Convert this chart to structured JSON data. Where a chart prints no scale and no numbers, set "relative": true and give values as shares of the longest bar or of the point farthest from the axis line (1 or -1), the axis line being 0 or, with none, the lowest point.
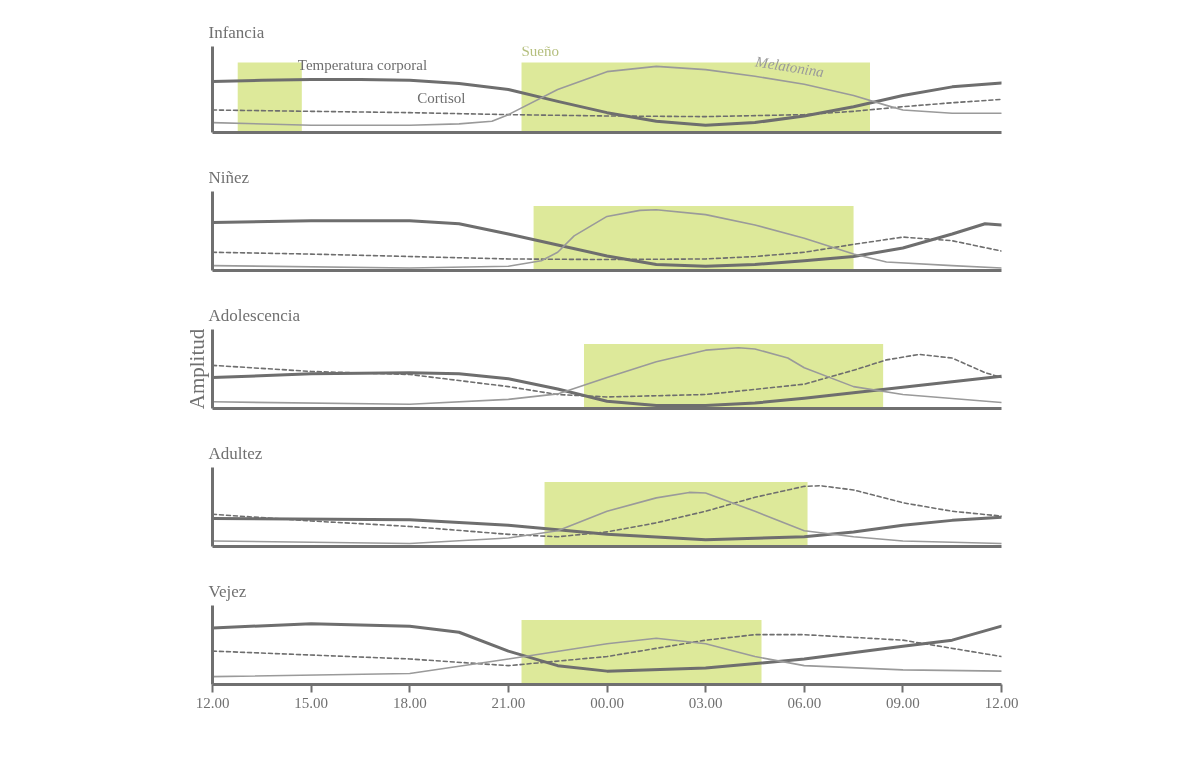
{
  "chart_data": [
    {
      "type": "line",
      "title": "Infancia",
      "relative": true,
      "xlim": [
        "2000-01-01T12:00",
        "2000-01-02T12:00"
      ],
      "tick_labels": false,
      "grid": false,
      "bands": [
        {
          "axis": "x",
          "from": "2000-01-01T12:46",
          "to": "2000-01-01T14:43",
          "color": "#dde99a"
        },
        {
          "axis": "x",
          "from": "2000-01-01T21:24",
          "to": "2000-01-02T08:00",
          "label": "Sueño",
          "color": "#dde99a"
        }
      ],
      "series": [
        {
          "name": "Temperatura corporal",
          "color": "#6e6e6e",
          "line_style": "solid",
          "x": [
            "2000-01-01T12:00",
            "2000-01-01T13:30",
            "2000-01-01T15:00",
            "2000-01-01T16:30",
            "2000-01-01T18:00",
            "2000-01-01T19:30",
            "2000-01-01T21:00",
            "2000-01-01T22:30",
            "2000-01-02T00:00",
            "2000-01-02T01:30",
            "2000-01-02T03:00",
            "2000-01-02T04:30",
            "2000-01-02T06:00",
            "2000-01-02T07:30",
            "2000-01-02T09:00",
            "2000-01-02T10:30",
            "2000-01-02T12:00"
          ],
          "values": [
            0.77,
            0.79,
            0.8,
            0.8,
            0.79,
            0.74,
            0.65,
            0.47,
            0.3,
            0.17,
            0.11,
            0.15,
            0.25,
            0.39,
            0.56,
            0.69,
            0.75
          ]
        },
        {
          "name": "Cortisol",
          "color": "#6e6e6e",
          "line_style": "dashed",
          "x": [
            "2000-01-01T12:00",
            "2000-01-01T15:00",
            "2000-01-01T18:00",
            "2000-01-01T21:00",
            "2000-01-02T00:00",
            "2000-01-02T03:00",
            "2000-01-02T06:00",
            "2000-01-02T07:30",
            "2000-01-02T09:00",
            "2000-01-02T10:30",
            "2000-01-02T12:00"
          ],
          "values": [
            0.34,
            0.32,
            0.3,
            0.27,
            0.25,
            0.24,
            0.27,
            0.32,
            0.39,
            0.45,
            0.5
          ]
        },
        {
          "name": "Melatonina",
          "color": "#9a9a9a",
          "line_style": "solid",
          "x": [
            "2000-01-01T12:00",
            "2000-01-01T15:00",
            "2000-01-01T18:00",
            "2000-01-01T19:30",
            "2000-01-01T20:30",
            "2000-01-01T21:00",
            "2000-01-01T22:30",
            "2000-01-02T00:00",
            "2000-01-02T01:30",
            "2000-01-02T03:00",
            "2000-01-02T04:30",
            "2000-01-02T06:00",
            "2000-01-02T07:30",
            "2000-01-02T08:30",
            "2000-01-02T09:00",
            "2000-01-02T10:30",
            "2000-01-02T12:00"
          ],
          "values": [
            0.15,
            0.11,
            0.11,
            0.13,
            0.17,
            0.27,
            0.65,
            0.92,
            1,
            0.95,
            0.85,
            0.73,
            0.56,
            0.41,
            0.34,
            0.29,
            0.29
          ]
        }
      ]
    },
    {
      "type": "line",
      "title": "Niñez",
      "relative": true,
      "xlim": [
        "2000-01-01T12:00",
        "2000-01-02T12:00"
      ],
      "tick_labels": false,
      "grid": false,
      "bands": [
        {
          "axis": "x",
          "from": "2000-01-01T21:46",
          "to": "2000-01-02T07:30",
          "color": "#dde99a"
        }
      ],
      "series": [
        {
          "color": "#6e6e6e",
          "line_style": "solid",
          "x": [
            "2000-01-01T12:00",
            "2000-01-01T15:00",
            "2000-01-01T18:00",
            "2000-01-01T19:30",
            "2000-01-01T21:00",
            "2000-01-01T22:30",
            "2000-01-02T00:00",
            "2000-01-02T01:30",
            "2000-01-02T03:00",
            "2000-01-02T04:30",
            "2000-01-02T06:00",
            "2000-01-02T07:30",
            "2000-01-02T09:00",
            "2000-01-02T10:30",
            "2000-01-02T11:30",
            "2000-01-02T12:00"
          ],
          "values": [
            0.79,
            0.82,
            0.82,
            0.77,
            0.6,
            0.42,
            0.24,
            0.1,
            0.07,
            0.1,
            0.16,
            0.23,
            0.37,
            0.6,
            0.77,
            0.75
          ]
        },
        {
          "color": "#6e6e6e",
          "line_style": "dashed",
          "x": [
            "2000-01-01T12:00",
            "2000-01-01T15:00",
            "2000-01-01T18:00",
            "2000-01-01T21:00",
            "2000-01-02T00:00",
            "2000-01-02T03:00",
            "2000-01-02T04:30",
            "2000-01-02T06:00",
            "2000-01-02T07:30",
            "2000-01-02T09:00",
            "2000-01-02T10:30",
            "2000-01-02T12:00"
          ],
          "values": [
            0.3,
            0.27,
            0.23,
            0.19,
            0.18,
            0.19,
            0.23,
            0.3,
            0.43,
            0.55,
            0.49,
            0.32
          ]
        },
        {
          "color": "#9a9a9a",
          "line_style": "solid",
          "x": [
            "2000-01-01T12:00",
            "2000-01-01T18:00",
            "2000-01-01T21:00",
            "2000-01-01T22:00",
            "2000-01-01T22:30",
            "2000-01-01T23:00",
            "2000-01-02T00:00",
            "2000-01-02T01:00",
            "2000-01-02T01:30",
            "2000-01-02T03:00",
            "2000-01-02T04:30",
            "2000-01-02T06:00",
            "2000-01-02T07:30",
            "2000-01-02T08:30",
            "2000-01-02T10:30",
            "2000-01-02T12:00"
          ],
          "values": [
            0.08,
            0.04,
            0.07,
            0.16,
            0.3,
            0.57,
            0.89,
            0.99,
            1,
            0.92,
            0.75,
            0.53,
            0.27,
            0.14,
            0.08,
            0.04
          ]
        }
      ]
    },
    {
      "type": "line",
      "title": "Adolescencia",
      "ylabel": "Amplitud",
      "relative": true,
      "xlim": [
        "2000-01-01T12:00",
        "2000-01-02T12:00"
      ],
      "tick_labels": false,
      "grid": false,
      "bands": [
        {
          "axis": "x",
          "from": "2000-01-01T23:18",
          "to": "2000-01-02T08:24",
          "color": "#dde99a"
        }
      ],
      "series": [
        {
          "color": "#6e6e6e",
          "line_style": "solid",
          "x": [
            "2000-01-01T12:00",
            "2000-01-01T15:00",
            "2000-01-01T18:00",
            "2000-01-01T19:30",
            "2000-01-01T21:00",
            "2000-01-01T22:30",
            "2000-01-02T00:00",
            "2000-01-02T01:30",
            "2000-01-02T03:00",
            "2000-01-02T04:30",
            "2000-01-02T06:00",
            "2000-01-02T07:30",
            "2000-01-02T09:00",
            "2000-01-02T10:30",
            "2000-01-02T12:00"
          ],
          "values": [
            0.51,
            0.57,
            0.59,
            0.57,
            0.49,
            0.32,
            0.12,
            0.05,
            0.05,
            0.09,
            0.17,
            0.26,
            0.35,
            0.44,
            0.53
          ]
        },
        {
          "color": "#6e6e6e",
          "line_style": "dashed",
          "x": [
            "2000-01-01T12:00",
            "2000-01-01T15:00",
            "2000-01-01T18:00",
            "2000-01-01T21:00",
            "2000-01-01T22:30",
            "2000-01-02T00:00",
            "2000-01-02T03:00",
            "2000-01-02T06:00",
            "2000-01-02T07:30",
            "2000-01-02T08:30",
            "2000-01-02T09:30",
            "2000-01-02T10:30",
            "2000-01-02T11:30",
            "2000-01-02T12:00"
          ],
          "values": [
            0.71,
            0.61,
            0.56,
            0.36,
            0.23,
            0.19,
            0.23,
            0.4,
            0.63,
            0.8,
            0.89,
            0.83,
            0.59,
            0.51
          ]
        },
        {
          "color": "#9a9a9a",
          "line_style": "solid",
          "x": [
            "2000-01-01T12:00",
            "2000-01-01T18:00",
            "2000-01-01T21:00",
            "2000-01-01T22:30",
            "2000-01-02T00:00",
            "2000-01-02T01:30",
            "2000-01-02T03:00",
            "2000-01-02T04:00",
            "2000-01-02T04:30",
            "2000-01-02T05:30",
            "2000-01-02T06:00",
            "2000-01-02T07:30",
            "2000-01-02T09:00",
            "2000-01-02T12:00"
          ],
          "values": [
            0.11,
            0.07,
            0.15,
            0.24,
            0.51,
            0.77,
            0.96,
            1,
            0.98,
            0.83,
            0.67,
            0.36,
            0.23,
            0.1
          ]
        }
      ]
    },
    {
      "type": "line",
      "title": "Adultez",
      "relative": true,
      "xlim": [
        "2000-01-01T12:00",
        "2000-01-02T12:00"
      ],
      "tick_labels": false,
      "grid": false,
      "bands": [
        {
          "axis": "x",
          "from": "2000-01-01T22:06",
          "to": "2000-01-02T06:06",
          "color": "#dde99a"
        }
      ],
      "series": [
        {
          "color": "#6e6e6e",
          "line_style": "solid",
          "x": [
            "2000-01-01T12:00",
            "2000-01-01T18:00",
            "2000-01-01T21:00",
            "2000-01-02T00:00",
            "2000-01-02T03:00",
            "2000-01-02T06:00",
            "2000-01-02T07:30",
            "2000-01-02T09:00",
            "2000-01-02T10:30",
            "2000-01-02T12:00"
          ],
          "values": [
            0.46,
            0.44,
            0.35,
            0.2,
            0.11,
            0.16,
            0.24,
            0.35,
            0.43,
            0.48
          ]
        },
        {
          "color": "#6e6e6e",
          "line_style": "dashed",
          "x": [
            "2000-01-01T12:00",
            "2000-01-01T15:00",
            "2000-01-01T18:00",
            "2000-01-01T21:00",
            "2000-01-01T22:30",
            "2000-01-02T00:00",
            "2000-01-02T01:30",
            "2000-01-02T03:00",
            "2000-01-02T04:30",
            "2000-01-02T06:00",
            "2000-01-02T06:30",
            "2000-01-02T07:30",
            "2000-01-02T09:00",
            "2000-01-02T10:30",
            "2000-01-02T12:00"
          ],
          "values": [
            0.53,
            0.42,
            0.33,
            0.2,
            0.16,
            0.24,
            0.39,
            0.58,
            0.81,
            0.99,
            1,
            0.93,
            0.72,
            0.58,
            0.5
          ]
        },
        {
          "color": "#9a9a9a",
          "line_style": "solid",
          "x": [
            "2000-01-01T12:00",
            "2000-01-01T18:00",
            "2000-01-01T21:00",
            "2000-01-01T22:30",
            "2000-01-02T00:00",
            "2000-01-02T01:30",
            "2000-01-02T02:30",
            "2000-01-02T03:00",
            "2000-01-02T04:30",
            "2000-01-02T06:00",
            "2000-01-02T07:30",
            "2000-01-02T09:00",
            "2000-01-02T12:00"
          ],
          "values": [
            0.09,
            0.05,
            0.14,
            0.26,
            0.58,
            0.8,
            0.89,
            0.88,
            0.58,
            0.26,
            0.16,
            0.09,
            0.05
          ]
        }
      ]
    },
    {
      "type": "line",
      "title": "Vejez",
      "relative": true,
      "xlim": [
        "2000-01-01T12:00",
        "2000-01-02T12:00"
      ],
      "tick_labels": "x",
      "grid": false,
      "xticks": [
        {
          "value": "2000-01-01T12:00",
          "label": "12.00"
        },
        {
          "value": "2000-01-01T15:00",
          "label": "15.00"
        },
        {
          "value": "2000-01-01T18:00",
          "label": "18.00"
        },
        {
          "value": "2000-01-01T21:00",
          "label": "21.00"
        },
        {
          "value": "2000-01-02T00:00",
          "label": "00.00"
        },
        {
          "value": "2000-01-02T03:00",
          "label": "03.00"
        },
        {
          "value": "2000-01-02T06:00",
          "label": "06.00"
        },
        {
          "value": "2000-01-02T09:00",
          "label": "09.00"
        },
        {
          "value": "2000-01-02T12:00",
          "label": "12.00"
        }
      ],
      "bands": [
        {
          "axis": "x",
          "from": "2000-01-01T21:24",
          "to": "2000-01-02T04:42",
          "color": "#dde99a"
        }
      ],
      "series": [
        {
          "color": "#6e6e6e",
          "line_style": "solid",
          "x": [
            "2000-01-01T12:00",
            "2000-01-01T15:00",
            "2000-01-01T18:00",
            "2000-01-01T19:30",
            "2000-01-01T21:00",
            "2000-01-01T22:30",
            "2000-01-02T00:00",
            "2000-01-02T03:00",
            "2000-01-02T06:00",
            "2000-01-02T09:00",
            "2000-01-02T10:30",
            "2000-01-02T12:00"
          ],
          "values": [
            0.93,
            1,
            0.96,
            0.86,
            0.55,
            0.31,
            0.22,
            0.27,
            0.42,
            0.63,
            0.73,
            0.96
          ]
        },
        {
          "color": "#6e6e6e",
          "line_style": "dashed",
          "x": [
            "2000-01-01T12:00",
            "2000-01-01T18:00",
            "2000-01-01T21:00",
            "2000-01-02T00:00",
            "2000-01-02T03:00",
            "2000-01-02T04:30",
            "2000-01-02T06:00",
            "2000-01-02T09:00",
            "2000-01-02T12:00"
          ],
          "values": [
            0.55,
            0.42,
            0.31,
            0.46,
            0.73,
            0.82,
            0.82,
            0.73,
            0.46
          ]
        },
        {
          "color": "#9a9a9a",
          "line_style": "solid",
          "x": [
            "2000-01-01T12:00",
            "2000-01-01T18:00",
            "2000-01-01T21:00",
            "2000-01-02T00:00",
            "2000-01-02T01:30",
            "2000-01-02T03:00",
            "2000-01-02T04:30",
            "2000-01-02T06:00",
            "2000-01-02T09:00",
            "2000-01-02T12:00"
          ],
          "values": [
            0.13,
            0.18,
            0.42,
            0.67,
            0.76,
            0.67,
            0.46,
            0.31,
            0.24,
            0.22
          ]
        }
      ]
    }
  ]
}
